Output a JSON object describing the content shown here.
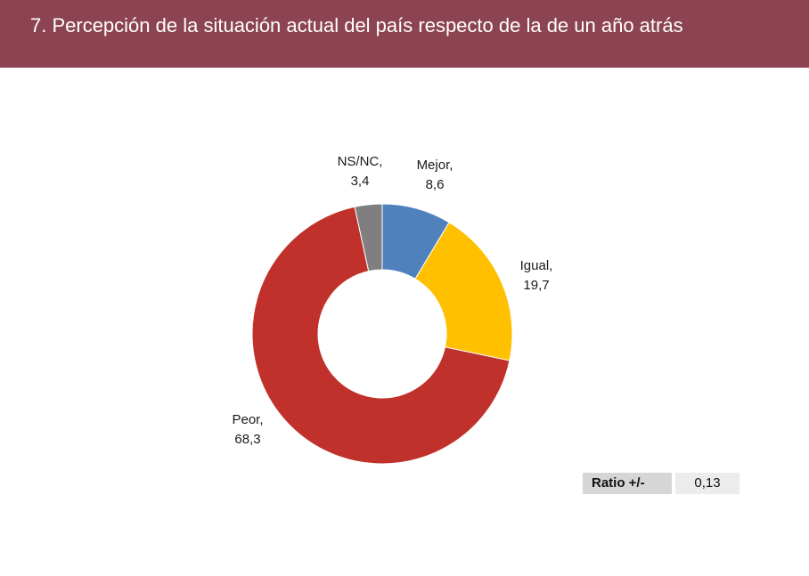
{
  "header": {
    "title": "7. Percepción de la situación actual del país respecto de la de un año atrás",
    "background": "#8c4452"
  },
  "chart_data": {
    "type": "pie",
    "donut": true,
    "slices": [
      {
        "label": "Mejor",
        "value": 8.6,
        "value_text": "8,6",
        "color": "#4f81bd"
      },
      {
        "label": "Igual",
        "value": 19.7,
        "value_text": "19,7",
        "color": "#ffc000"
      },
      {
        "label": "Peor",
        "value": 68.3,
        "value_text": "68,3",
        "color": "#c0312b"
      },
      {
        "label": "NS/NC",
        "value": 3.4,
        "value_text": "3,4",
        "color": "#7f7f7f"
      }
    ]
  },
  "ratio": {
    "label": "Ratio +/-",
    "value": "0,13"
  }
}
